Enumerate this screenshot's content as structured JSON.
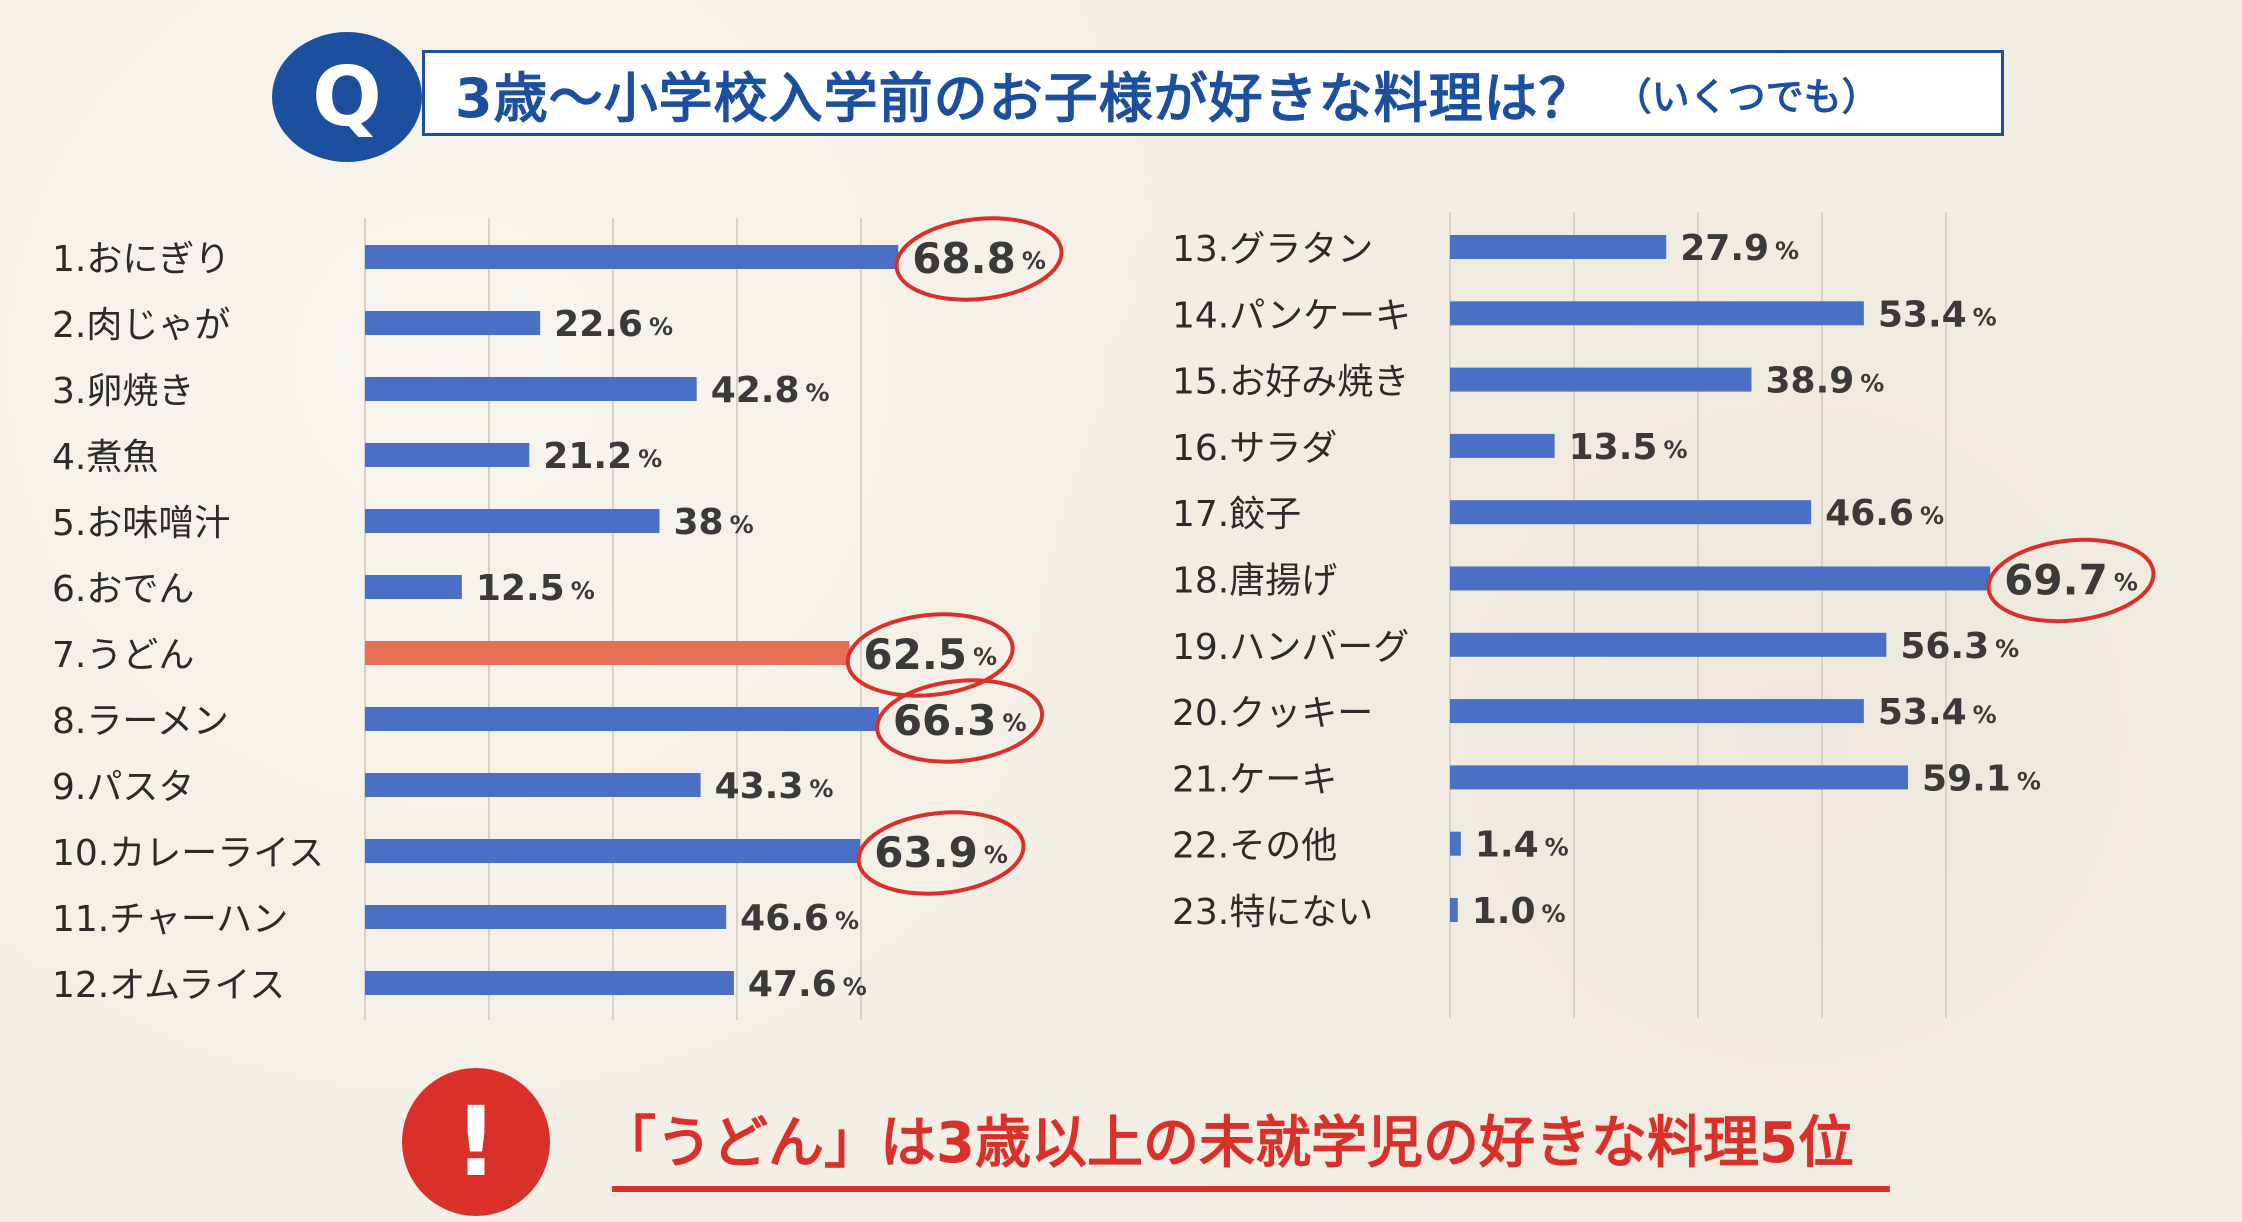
{
  "header": {
    "q_mark": "Q",
    "title": "3歳〜小学校入学前のお子様が好きな料理は？",
    "subtitle": "（いくつでも）"
  },
  "colors": {
    "bar": "#4a6fc4",
    "highlight_bar": "#e8705a",
    "circle": "#d9302a",
    "grid": "#d6d2c8"
  },
  "chart_data": [
    {
      "type": "bar",
      "orientation": "horizontal",
      "xlim": [
        0,
        80
      ],
      "grid": true,
      "unit": "%",
      "categories": [
        "1.おにぎり",
        "2.肉じゃが",
        "3.卵焼き",
        "4.煮魚",
        "5.お味噌汁",
        "6.おでん",
        "7.うどん",
        "8.ラーメン",
        "9.パスタ",
        "10.カレーライス",
        "11.チャーハン",
        "12.オムライス"
      ],
      "values": [
        68.8,
        22.6,
        42.8,
        21.2,
        38,
        12.5,
        62.5,
        66.3,
        43.3,
        63.9,
        46.6,
        47.6
      ],
      "labels": [
        "68.8",
        "22.6",
        "42.8",
        "21.2",
        "38",
        "12.5",
        "62.5",
        "66.3",
        "43.3",
        "63.9",
        "46.6",
        "47.6"
      ],
      "highlighted_bar": [
        6
      ],
      "circled": [
        0,
        6,
        7,
        9
      ]
    },
    {
      "type": "bar",
      "orientation": "horizontal",
      "xlim": [
        0,
        80
      ],
      "grid": true,
      "unit": "%",
      "categories": [
        "13.グラタン",
        "14.パンケーキ",
        "15.お好み焼き",
        "16.サラダ",
        "17.餃子",
        "18.唐揚げ",
        "19.ハンバーグ",
        "20.クッキー",
        "21.ケーキ",
        "22.その他",
        "23.特にない"
      ],
      "values": [
        27.9,
        53.4,
        38.9,
        13.5,
        46.6,
        69.7,
        56.3,
        53.4,
        59.1,
        1.4,
        1.0
      ],
      "labels": [
        "27.9",
        "53.4",
        "38.9",
        "13.5",
        "46.6",
        "69.7",
        "56.3",
        "53.4",
        "59.1",
        "1.4",
        "1.0"
      ],
      "highlighted_bar": [],
      "circled": [
        5
      ]
    }
  ],
  "footer": {
    "excl_mark": "!",
    "conclusion": "「うどん」は3歳以上の未就学児の好きな料理5位"
  }
}
